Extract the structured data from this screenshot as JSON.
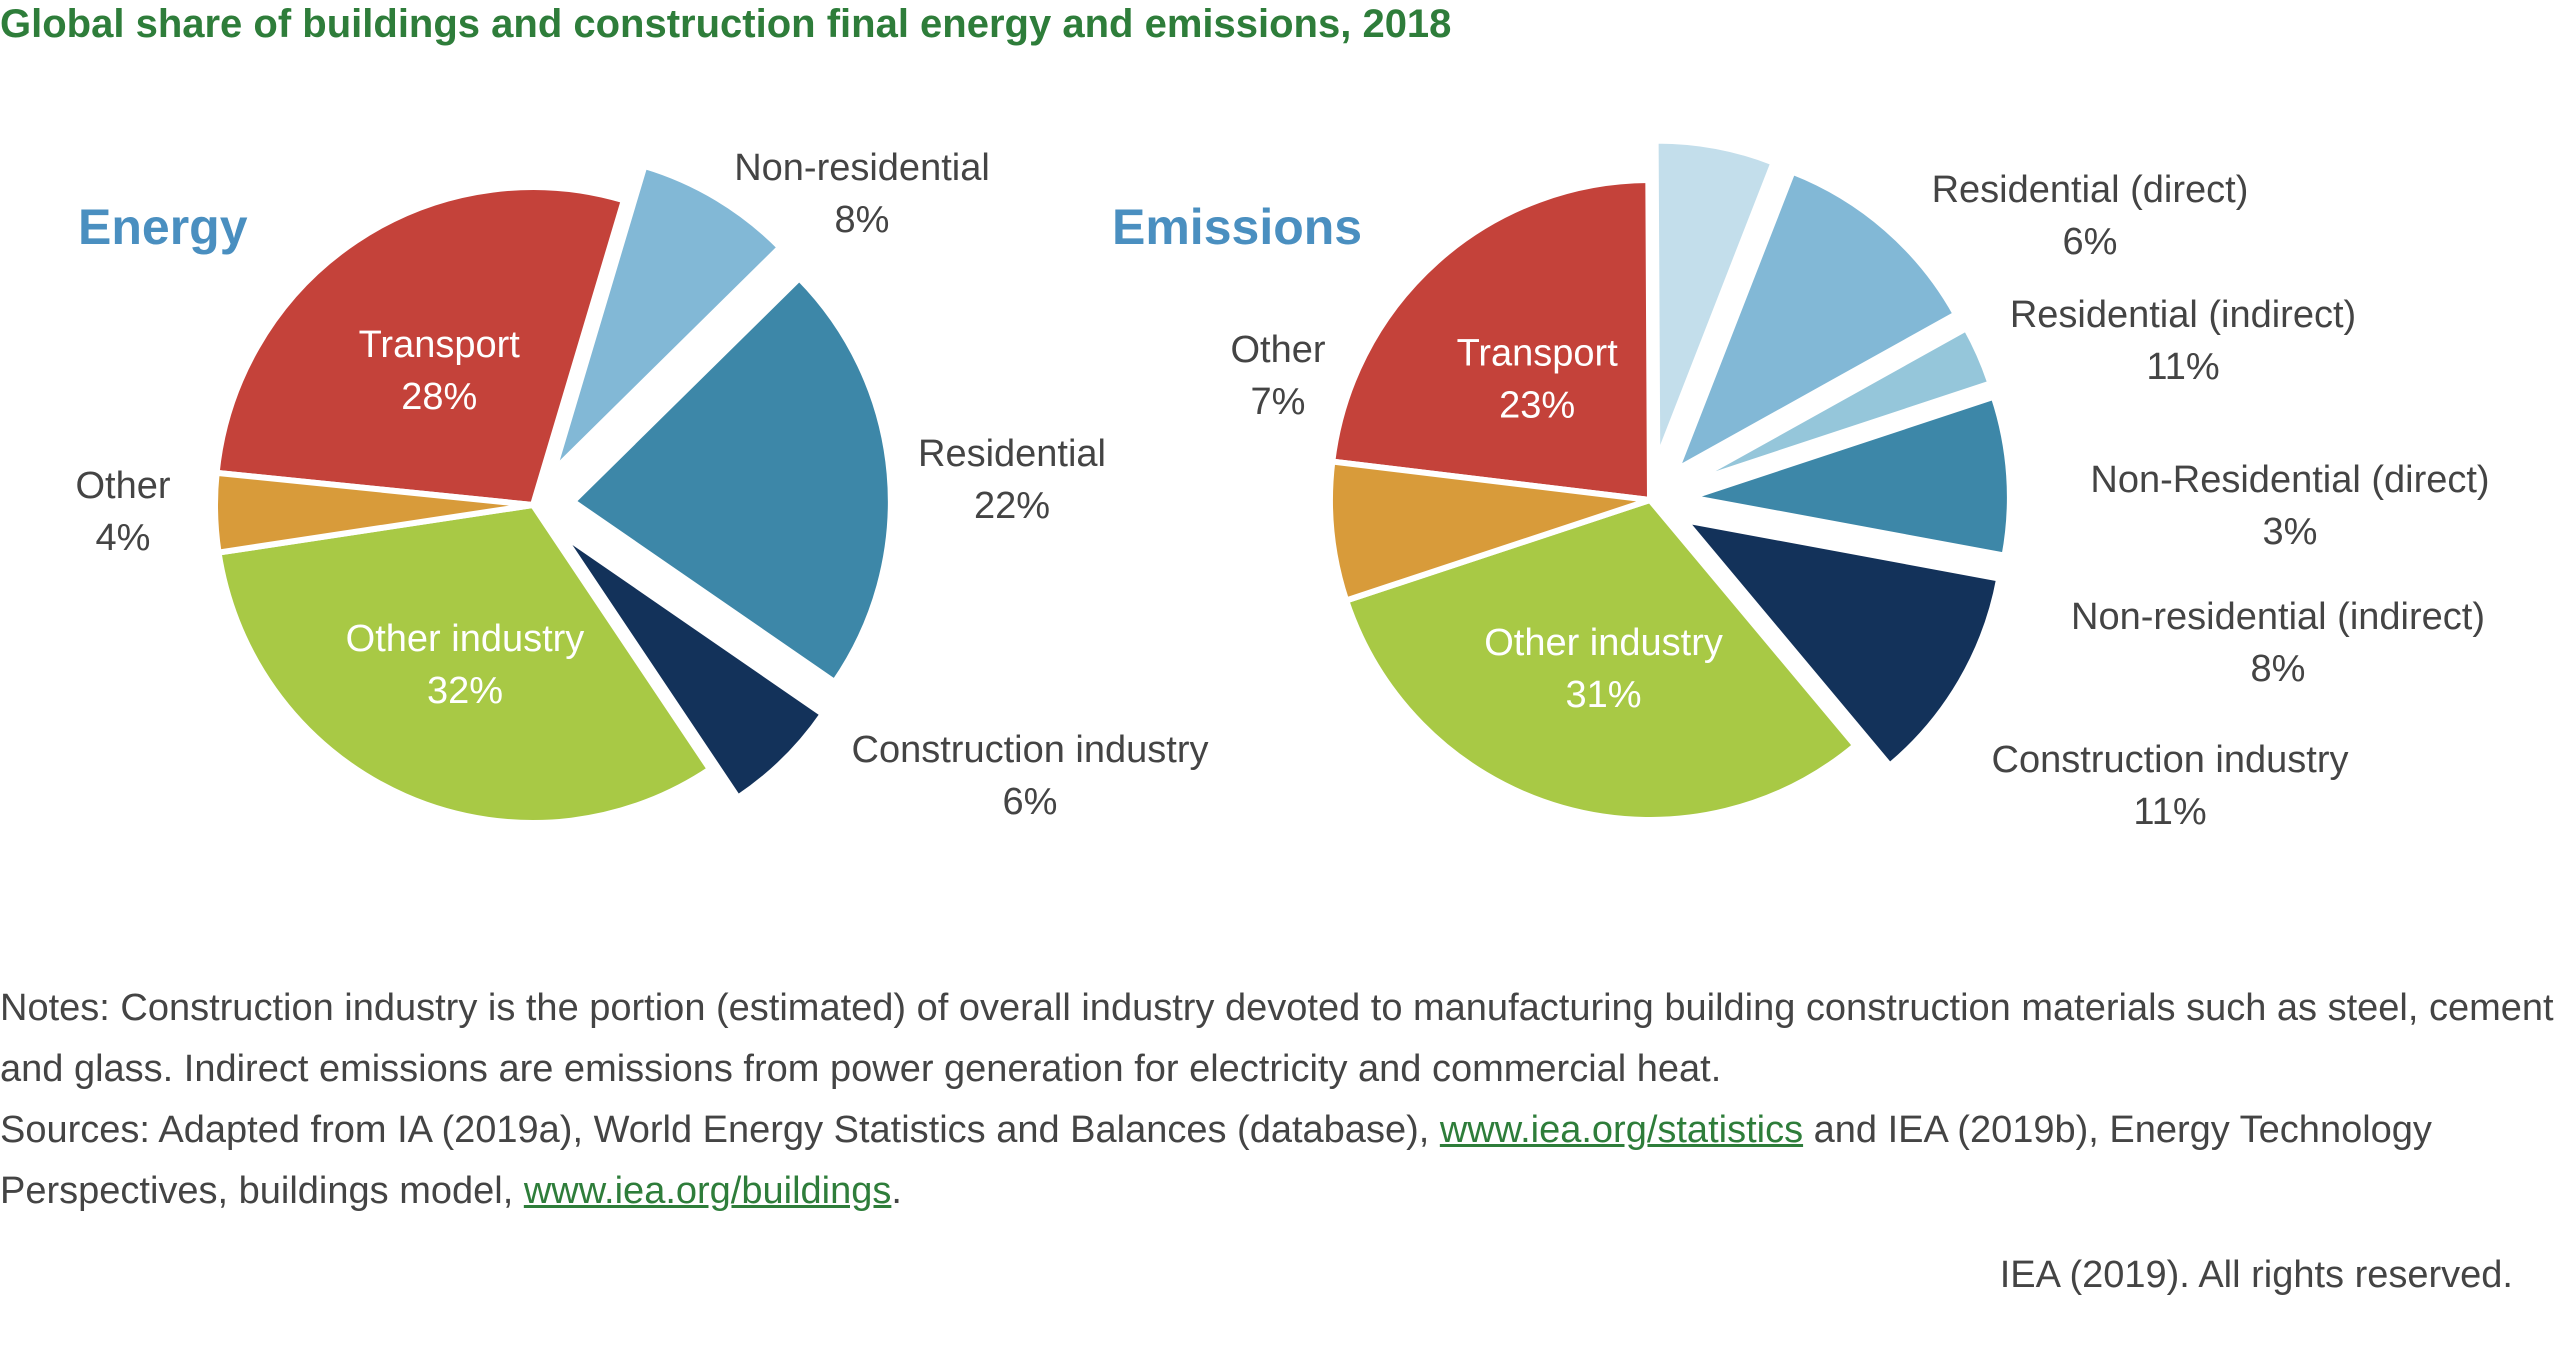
{
  "title": "Global share of buildings and construction final energy and emissions, 2018",
  "colors": {
    "title": "#2e7d3a",
    "chart_heading": "#4a8fc0",
    "label_dark": "#444444",
    "label_light": "#ffffff",
    "transport": "#c4423a",
    "non_residential": "#82b8d6",
    "residential": "#3d87a8",
    "construction_industry": "#13325a",
    "other_industry": "#a8c945",
    "other": "#d89b3a",
    "residential_direct": "#c3deeb",
    "residential_indirect": "#82b8d6",
    "non_residential_direct": "#95c6da",
    "non_residential_indirect": "#3d87a8"
  },
  "chart_data": [
    {
      "type": "pie",
      "title": "Energy",
      "series": [
        {
          "label": "Transport",
          "value_label": "28%",
          "value": 28,
          "color": "#c4423a",
          "exploded": false,
          "label_inside": true
        },
        {
          "label": "Non-residential",
          "value_label": "8%",
          "value": 8,
          "color": "#82b8d6",
          "exploded": true,
          "label_inside": false
        },
        {
          "label": "Residential",
          "value_label": "22%",
          "value": 22,
          "color": "#3d87a8",
          "exploded": true,
          "label_inside": false
        },
        {
          "label": "Construction industry",
          "value_label": "6%",
          "value": 6,
          "color": "#13325a",
          "exploded": true,
          "label_inside": false
        },
        {
          "label": "Other industry",
          "value_label": "32%",
          "value": 32,
          "color": "#a8c945",
          "exploded": false,
          "label_inside": true
        },
        {
          "label": "Other",
          "value_label": "4%",
          "value": 4,
          "color": "#d89b3a",
          "exploded": false,
          "label_inside": false
        }
      ]
    },
    {
      "type": "pie",
      "title": "Emissions",
      "series": [
        {
          "label": "Transport",
          "value_label": "23%",
          "value": 23,
          "color": "#c4423a",
          "exploded": false,
          "label_inside": true
        },
        {
          "label": "Residential (direct)",
          "value_label": "6%",
          "value": 6,
          "color": "#c3deeb",
          "exploded": true,
          "label_inside": false
        },
        {
          "label": "Residential (indirect)",
          "value_label": "11%",
          "value": 11,
          "color": "#82b8d6",
          "exploded": true,
          "label_inside": false
        },
        {
          "label": "Non-Residential (direct)",
          "value_label": "3%",
          "value": 3,
          "color": "#95c6da",
          "exploded": true,
          "label_inside": false
        },
        {
          "label": "Non-residential (indirect)",
          "value_label": "8%",
          "value": 8,
          "color": "#3d87a8",
          "exploded": true,
          "label_inside": false
        },
        {
          "label": "Construction industry",
          "value_label": "11%",
          "value": 11,
          "color": "#13325a",
          "exploded": true,
          "label_inside": false
        },
        {
          "label": "Other industry",
          "value_label": "31%",
          "value": 31,
          "color": "#a8c945",
          "exploded": false,
          "label_inside": true
        },
        {
          "label": "Other",
          "value_label": "7%",
          "value": 7,
          "color": "#d89b3a",
          "exploded": false,
          "label_inside": false
        }
      ]
    }
  ],
  "notes": {
    "line1": "Notes: Construction industry is the portion (estimated) of overall industry devoted to manufacturing building construction materials such as steel, cement and glass. Indirect emissions are emissions from power generation for electricity and commercial heat.",
    "sources_prefix": "Sources: Adapted from IA (2019a), World Energy Statistics and Balances (database), ",
    "link1": "www.iea.org/statistics",
    "sources_middle": " and IEA (2019b), Energy Technology Perspectives, buildings model, ",
    "link2": "www.iea.org/buildings",
    "sources_suffix": "."
  },
  "copyright": "IEA (2019). All rights reserved."
}
